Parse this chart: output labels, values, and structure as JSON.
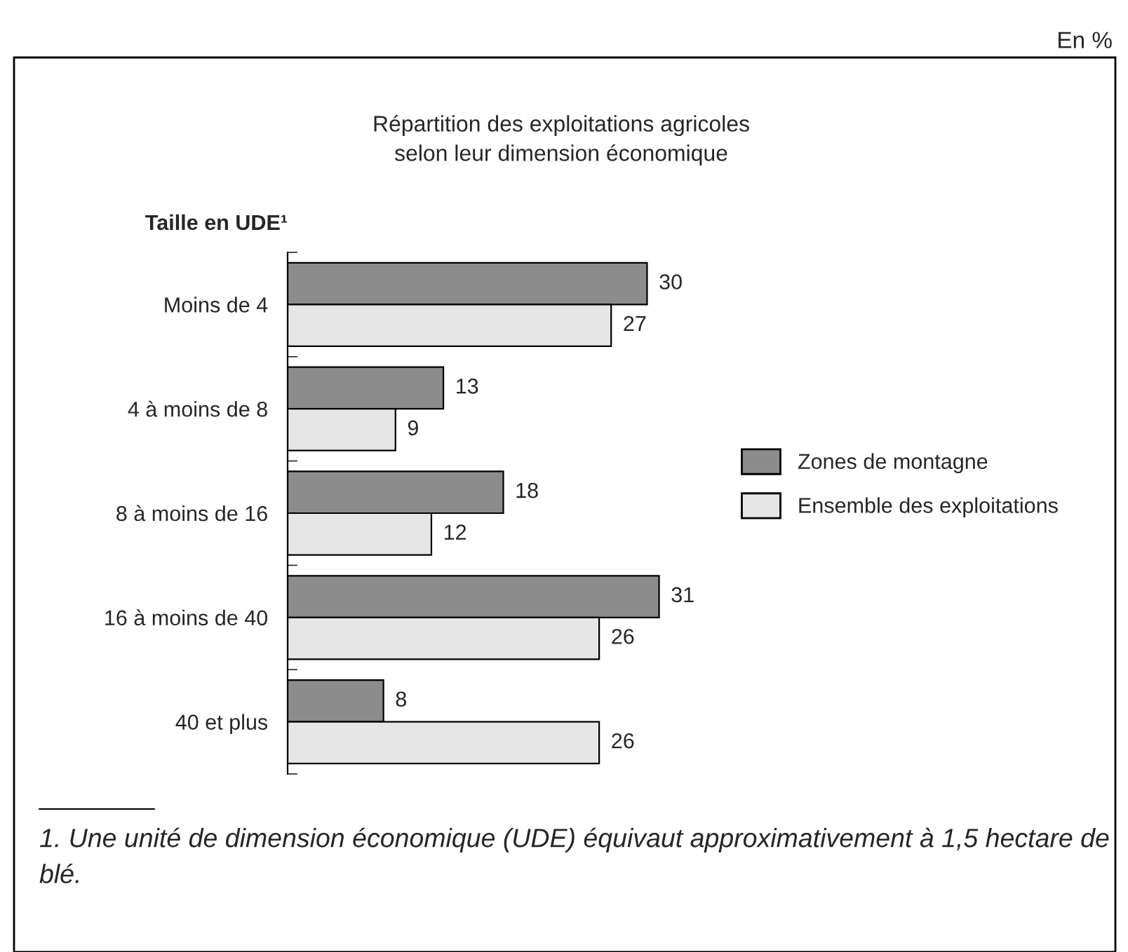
{
  "chart_data": {
    "type": "bar",
    "orientation": "horizontal",
    "title": "Répartition des exploitations agricoles\nselon leur dimension économique",
    "ylabel": "Taille en UDE¹",
    "categories": [
      "Moins de 4",
      "4 à moins de 8",
      "8 à moins de 16",
      "16 à moins de 40",
      "40 et plus"
    ],
    "series": [
      {
        "name": "Zones de montagne",
        "color": "#8c8c8c",
        "values": [
          30,
          13,
          18,
          31,
          8
        ]
      },
      {
        "name": "Ensemble des exploitations",
        "color": "#e6e6e6",
        "values": [
          27,
          9,
          12,
          26,
          26
        ]
      }
    ],
    "data_labels": true,
    "legend": "right",
    "grid": false,
    "tick_labels": "y",
    "annotations": [
      "En %",
      "1. Une unité de dimension économique (UDE) équivaut approximativement à 1,5 hectare de blé."
    ]
  }
}
